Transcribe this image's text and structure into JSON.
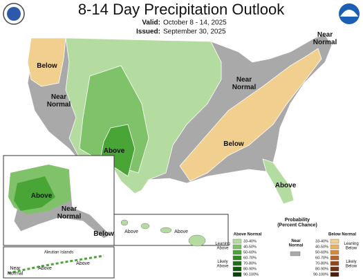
{
  "header": {
    "title": "8-14 Day Precipitation Outlook",
    "valid_label": "Valid:",
    "valid": "October 8 - 14, 2025",
    "issued_label": "Issued:",
    "issued": "September 30, 2025"
  },
  "regions": [
    {
      "label": [
        "Below"
      ]
    },
    {
      "label": [
        "Near",
        "Normal"
      ]
    },
    {
      "label": [
        "Above"
      ]
    },
    {
      "label": [
        "Near",
        "Normal"
      ]
    },
    {
      "label": [
        "Near",
        "Normal"
      ]
    },
    {
      "label": [
        "Below"
      ]
    },
    {
      "label": [
        "Above"
      ]
    }
  ],
  "alaska": {
    "labels": [
      [
        "Above"
      ],
      [
        "Near",
        "Normal"
      ],
      [
        "Below"
      ]
    ]
  },
  "hawaii": {
    "labels": [
      [
        "Above"
      ],
      [
        "Above"
      ]
    ]
  },
  "aleutian": {
    "title": "Aleutian Islands",
    "labels": [
      [
        "Above"
      ],
      [
        "Above"
      ],
      [
        "Near",
        "Normal"
      ]
    ]
  },
  "legend": {
    "title": [
      "Probability",
      "(Percent Chance)"
    ],
    "above": {
      "title": "Above Normal",
      "leaning": [
        "Leaning",
        "Above"
      ],
      "likely": [
        "Likely",
        "Above"
      ],
      "ranges": [
        "33-40%",
        "40-50%",
        "50-60%",
        "60-70%",
        "70-80%",
        "80-90%",
        "90-100%"
      ]
    },
    "near": {
      "title": [
        "Near",
        "Normal"
      ]
    },
    "below": {
      "title": "Below Normal",
      "leaning": [
        "Leaning",
        "Below"
      ],
      "likely": [
        "Likely",
        "Below"
      ],
      "ranges": [
        "33-40%",
        "40-50%",
        "50-60%",
        "60-70%",
        "70-80%",
        "80-90%",
        "90-100%"
      ]
    }
  }
}
